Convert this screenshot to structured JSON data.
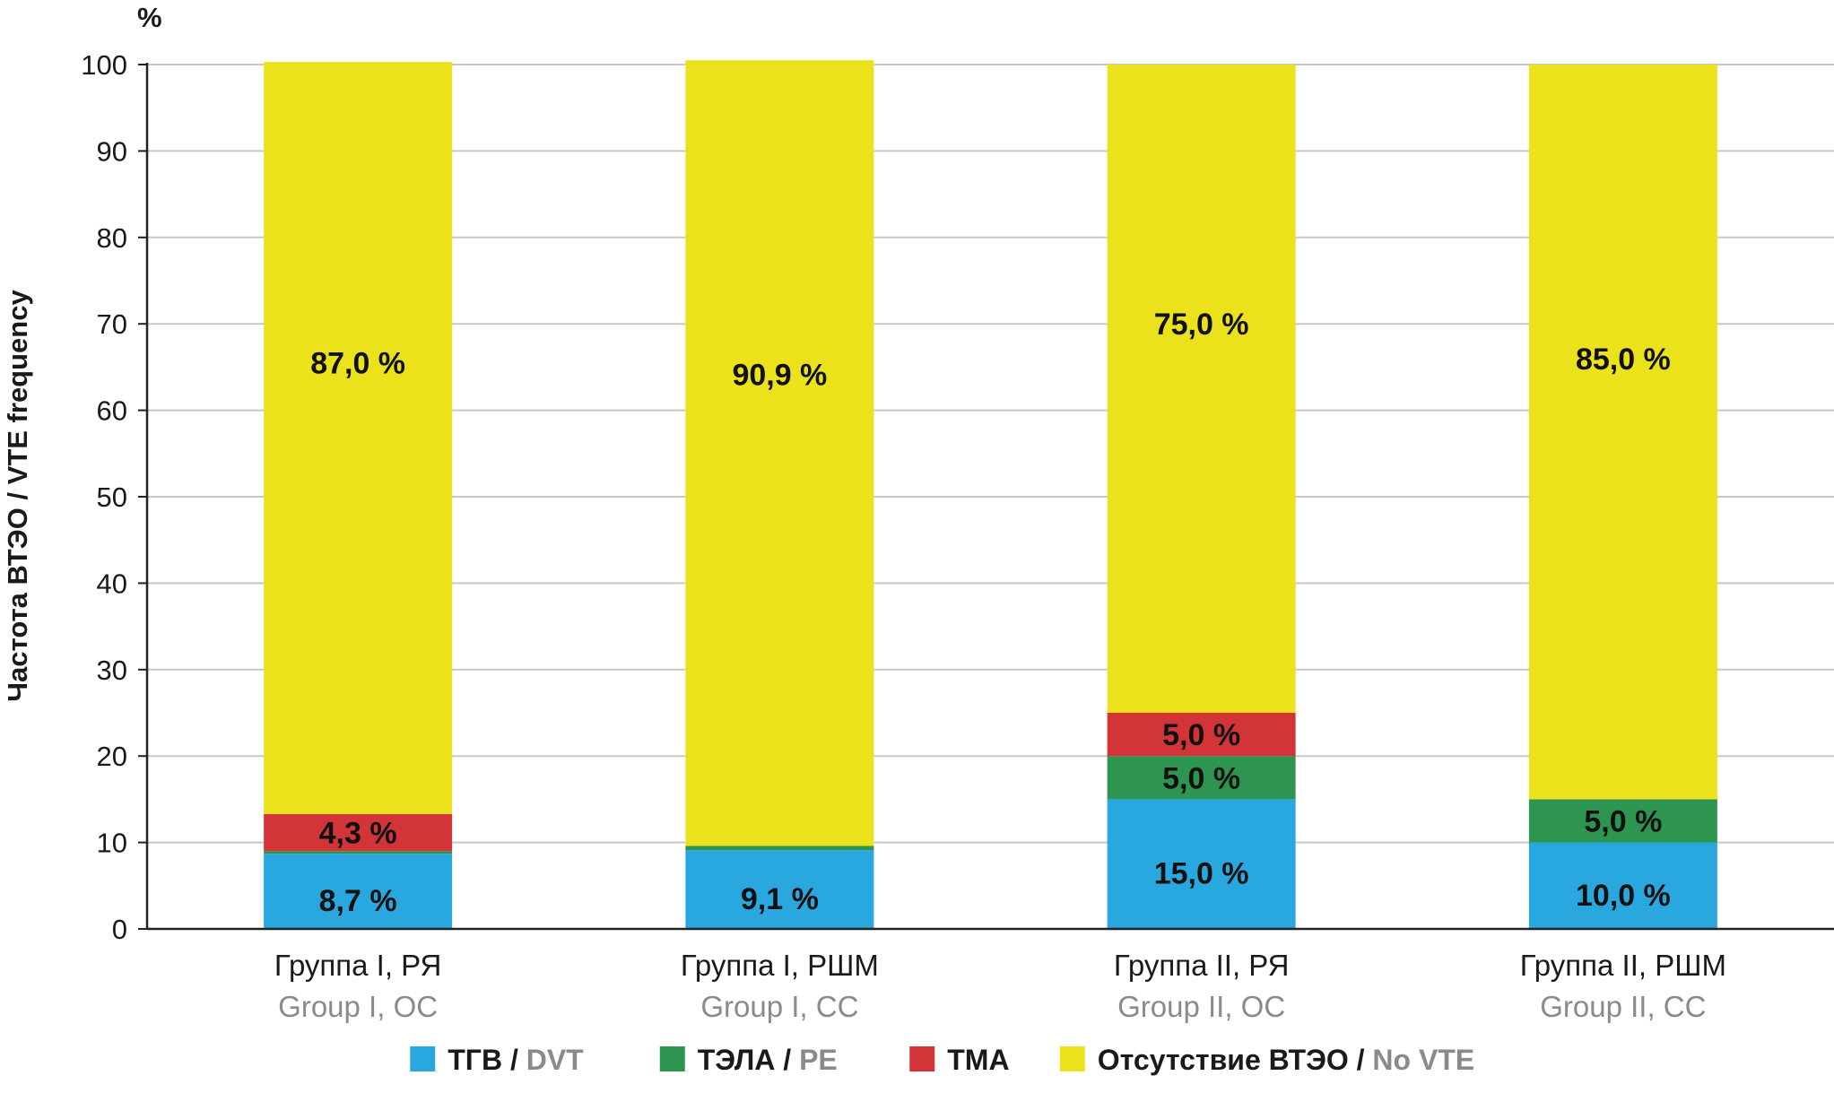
{
  "chart_data": {
    "type": "bar",
    "stacked": true,
    "unit_label": "%",
    "ylabel": {
      "ru": "Частота ВТЭО",
      "separator": " / ",
      "en": "VTE frequency"
    },
    "ylim": [
      0,
      100
    ],
    "y_ticks": [
      0,
      10,
      20,
      30,
      40,
      50,
      60,
      70,
      80,
      90,
      100
    ],
    "grid": true,
    "categories": [
      {
        "ru": "Группа I, РЯ",
        "en": "Group I, OC"
      },
      {
        "ru": "Группа I, РШМ",
        "en": "Group I, CC"
      },
      {
        "ru": "Группа II, РЯ",
        "en": "Group II, OC"
      },
      {
        "ru": "Группа II, РШМ",
        "en": "Group II, CC"
      }
    ],
    "series": [
      {
        "key": "dvt",
        "name_ru": "ТГВ",
        "name_en": "DVT",
        "color": "#29A8E0",
        "values": [
          8.7,
          9.1,
          15.0,
          10.0
        ],
        "labels": [
          "8,7 %",
          "9,1 %",
          "15,0 %",
          "10,0 %"
        ]
      },
      {
        "key": "pe",
        "name_ru": "ТЭЛА",
        "name_en": "PE",
        "color": "#2E9550",
        "values": [
          0.3,
          0.5,
          5.0,
          5.0
        ],
        "labels": [
          null,
          null,
          "5,0 %",
          "5,0 %"
        ]
      },
      {
        "key": "tma",
        "name_ru": "ТМА",
        "name_en": null,
        "color": "#D33438",
        "values": [
          4.3,
          0,
          5.0,
          0
        ],
        "labels": [
          "4,3 %",
          null,
          "5,0 %",
          null
        ]
      },
      {
        "key": "novte",
        "name_ru": "Отсутствие ВТЭО",
        "name_en": "No VTE",
        "color": "#EBE21C",
        "values": [
          87.0,
          90.9,
          75.0,
          85.0
        ],
        "labels": [
          "87,0 %",
          "90,9 %",
          "75,0 %",
          "85,0 %"
        ]
      }
    ],
    "legend": {
      "position": "bottom-center",
      "separator": " / "
    }
  }
}
